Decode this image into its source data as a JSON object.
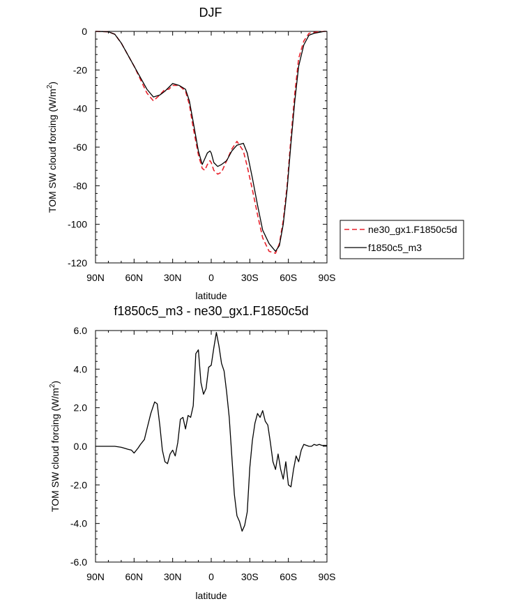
{
  "chart_data": [
    {
      "type": "line",
      "title": "DJF",
      "xlabel": "latitude",
      "ylabel_main": "TOM SW cloud forcing (W/m",
      "ylabel_sup": "2",
      "ylabel_tail": ")",
      "xlim": [
        90,
        -90
      ],
      "ylim": [
        -120,
        0
      ],
      "xticks": [
        90,
        60,
        30,
        0,
        -30,
        -60,
        -90
      ],
      "xtick_labels": [
        "90N",
        "60N",
        "30N",
        "0",
        "30S",
        "60S",
        "90S"
      ],
      "yticks": [
        0,
        -20,
        -40,
        -60,
        -80,
        -100,
        -120
      ],
      "ytick_labels": [
        "0",
        "-20",
        "-40",
        "-60",
        "-80",
        "-100",
        "-120"
      ],
      "legend_position": "outside-right",
      "series": [
        {
          "name": "ne30_gx1.F1850c5d",
          "color": "#e8212b",
          "dash": "dashed",
          "x": [
            90,
            80,
            75,
            70,
            65,
            60,
            55,
            50,
            45,
            40,
            36,
            33,
            30,
            25,
            20,
            17,
            14,
            10,
            7,
            5,
            3,
            1,
            0,
            -2,
            -5,
            -8,
            -12,
            -16,
            -20,
            -25,
            -28,
            -32,
            -36,
            -40,
            -45,
            -50,
            -53,
            -56,
            -59,
            -62,
            -65,
            -68,
            -72,
            -76,
            -80,
            -84,
            -88,
            -90
          ],
          "y": [
            0,
            -0.2,
            -1.5,
            -6,
            -12,
            -18,
            -25,
            -32,
            -36,
            -33,
            -30,
            -30,
            -28,
            -28,
            -31,
            -38,
            -50,
            -64,
            -71,
            -72,
            -69,
            -67,
            -68,
            -72,
            -74,
            -73,
            -67,
            -61,
            -57,
            -62,
            -70,
            -82,
            -95,
            -107,
            -114,
            -115,
            -110,
            -98,
            -80,
            -55,
            -32,
            -14,
            -5,
            -1,
            -0.5,
            -0.2,
            0,
            0
          ]
        },
        {
          "name": "f1850c5_m3",
          "color": "#000000",
          "dash": "solid",
          "x": [
            90,
            80,
            75,
            70,
            65,
            60,
            55,
            50,
            45,
            40,
            36,
            33,
            30,
            25,
            20,
            17,
            14,
            10,
            7,
            5,
            3,
            1,
            0,
            -2,
            -5,
            -8,
            -12,
            -16,
            -20,
            -25,
            -28,
            -32,
            -36,
            -40,
            -45,
            -50,
            -53,
            -56,
            -59,
            -62,
            -65,
            -68,
            -72,
            -76,
            -80,
            -84,
            -88,
            -90
          ],
          "y": [
            0,
            -0.2,
            -1.5,
            -6,
            -12,
            -18,
            -24,
            -30,
            -34,
            -33,
            -31,
            -29,
            -27,
            -28,
            -30,
            -36,
            -47,
            -62,
            -69,
            -66,
            -63,
            -62,
            -63,
            -68,
            -70,
            -69,
            -67,
            -62,
            -59,
            -58,
            -63,
            -76,
            -90,
            -103,
            -110,
            -114,
            -111,
            -100,
            -82,
            -58,
            -36,
            -18,
            -7,
            -2,
            -1,
            -0.5,
            0,
            0
          ]
        }
      ]
    },
    {
      "type": "line",
      "title": "f1850c5_m3 - ne30_gx1.F1850c5d",
      "xlabel": "latitude",
      "ylabel_main": "TOM SW cloud forcing (W/m",
      "ylabel_sup": "2",
      "ylabel_tail": ")",
      "xlim": [
        90,
        -90
      ],
      "ylim": [
        -6,
        6
      ],
      "xticks": [
        90,
        60,
        30,
        0,
        -30,
        -60,
        -90
      ],
      "xtick_labels": [
        "90N",
        "60N",
        "30N",
        "0",
        "30S",
        "60S",
        "90S"
      ],
      "yticks": [
        6,
        4,
        2,
        0,
        -2,
        -4,
        -6
      ],
      "ytick_labels": [
        "6.0",
        "4.0",
        "2.0",
        "0.0",
        "-2.0",
        "-4.0",
        "-6.0"
      ],
      "series": [
        {
          "name": "",
          "color": "#000000",
          "dash": "solid",
          "x": [
            90,
            75,
            70,
            65,
            62,
            60,
            57,
            55,
            52,
            50,
            47,
            44,
            42,
            40,
            38,
            36,
            34,
            32,
            30,
            28,
            26,
            24,
            22,
            20,
            18,
            16,
            14,
            12,
            10,
            8,
            6,
            4,
            2,
            0,
            -2,
            -4,
            -6,
            -8,
            -10,
            -12,
            -14,
            -16,
            -18,
            -20,
            -22,
            -24,
            -26,
            -28,
            -30,
            -32,
            -34,
            -36,
            -38,
            -40,
            -42,
            -44,
            -46,
            -48,
            -50,
            -52,
            -54,
            -56,
            -58,
            -60,
            -62,
            -64,
            -66,
            -68,
            -70,
            -72,
            -74,
            -76,
            -78,
            -80,
            -82,
            -84,
            -86,
            -88,
            -90
          ],
          "y": [
            0,
            0,
            -0.05,
            -0.15,
            -0.2,
            -0.35,
            -0.1,
            0.1,
            0.35,
            0.9,
            1.7,
            2.3,
            2.2,
            1.1,
            -0.2,
            -0.8,
            -0.9,
            -0.4,
            -0.2,
            -0.5,
            0.2,
            1.4,
            1.5,
            0.9,
            1.6,
            1.5,
            2.1,
            4.8,
            5.0,
            3.3,
            2.7,
            3.0,
            4.1,
            4.2,
            5.1,
            5.9,
            5.2,
            4.3,
            3.9,
            2.8,
            1.5,
            -0.5,
            -2.5,
            -3.6,
            -3.9,
            -4.4,
            -4.1,
            -3.4,
            -1.1,
            0.3,
            1.2,
            1.7,
            1.5,
            1.85,
            1.3,
            1.1,
            0.2,
            -0.8,
            -1.2,
            -0.4,
            -1.2,
            -1.7,
            -0.8,
            -2.0,
            -2.1,
            -1.2,
            -0.5,
            -0.8,
            -0.2,
            0.1,
            0.05,
            0.0,
            0.0,
            0.1,
            0.05,
            0.1,
            0.05,
            0.05,
            0.05
          ]
        }
      ]
    }
  ]
}
